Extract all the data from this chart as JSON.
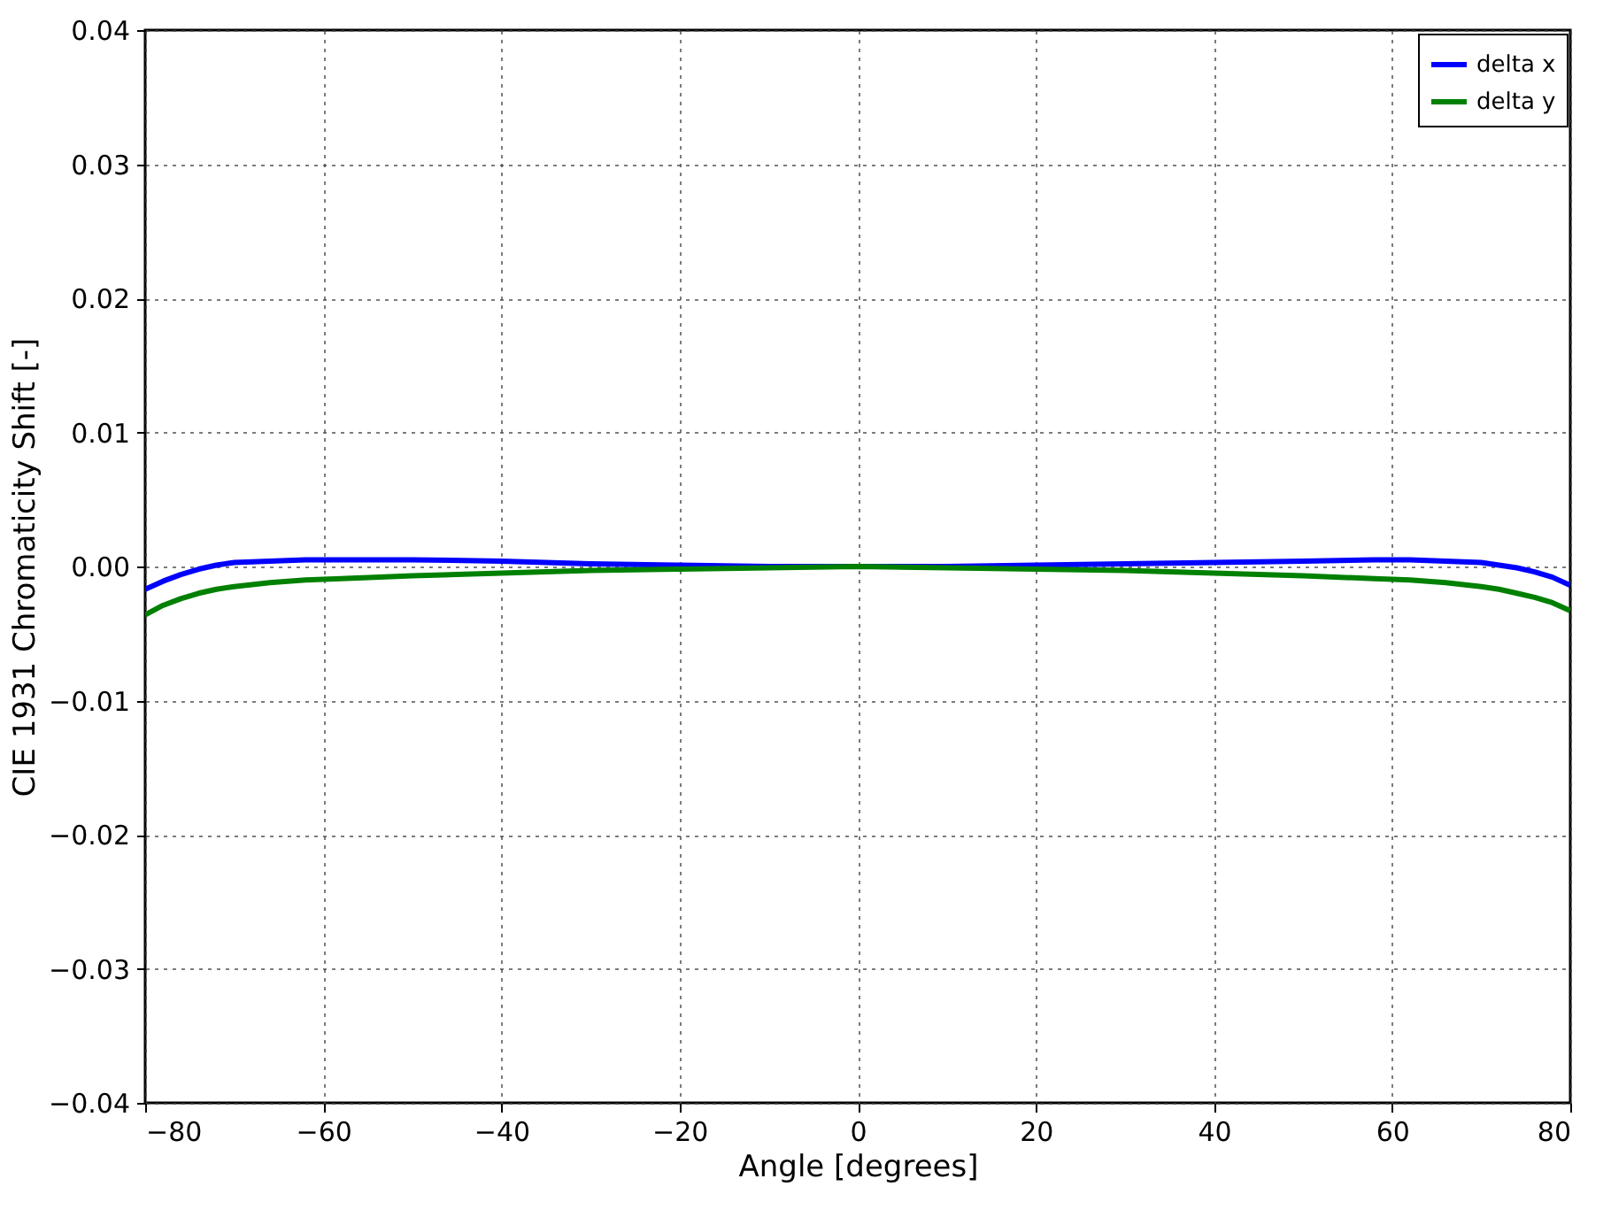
{
  "chart_data": {
    "type": "line",
    "xlabel": "Angle [degrees]",
    "ylabel": "CIE 1931 Chromaticity Shift  [-]",
    "xlim": [
      -80,
      80
    ],
    "ylim": [
      -0.04,
      0.04
    ],
    "xticks": [
      {
        "value": -80,
        "label": "−80"
      },
      {
        "value": -60,
        "label": "−60"
      },
      {
        "value": -40,
        "label": "−40"
      },
      {
        "value": -20,
        "label": "−20"
      },
      0,
      20,
      40,
      60,
      80
    ],
    "yticks": [
      {
        "value": -0.04,
        "label": "−0.04"
      },
      {
        "value": -0.03,
        "label": "−0.03"
      },
      {
        "value": -0.02,
        "label": "−0.02"
      },
      {
        "value": -0.01,
        "label": "−0.01"
      },
      {
        "value": 0,
        "label": "0.00"
      },
      {
        "value": 0.01,
        "label": "0.01"
      },
      {
        "value": 0.02,
        "label": "0.02"
      },
      {
        "value": 0.03,
        "label": "0.03"
      },
      {
        "value": 0.04,
        "label": "0.04"
      }
    ],
    "x": [
      -80,
      -78,
      -76,
      -74,
      -72,
      -70,
      -66,
      -62,
      -58,
      -50,
      -40,
      -30,
      -20,
      -10,
      0,
      10,
      20,
      30,
      40,
      50,
      58,
      62,
      66,
      70,
      72,
      74,
      76,
      78,
      80
    ],
    "series": [
      {
        "name": "delta x",
        "color": "#0000ff",
        "values": [
          -0.0017,
          -0.0011,
          -0.0006,
          -0.0002,
          0.0001,
          0.0003,
          0.0004,
          0.0005,
          0.0005,
          0.0005,
          0.0004,
          0.0002,
          0.0001,
          0.0,
          0.0,
          0.0,
          0.0001,
          0.0002,
          0.0003,
          0.0004,
          0.0005,
          0.0005,
          0.0004,
          0.0003,
          0.0001,
          -0.0001,
          -0.0004,
          -0.0008,
          -0.0014
        ]
      },
      {
        "name": "delta y",
        "color": "#008000",
        "values": [
          -0.0036,
          -0.0029,
          -0.0024,
          -0.002,
          -0.0017,
          -0.0015,
          -0.0012,
          -0.001,
          -0.0009,
          -0.0007,
          -0.0005,
          -0.0003,
          -0.0002,
          -0.0001,
          0.0,
          -0.0001,
          -0.0002,
          -0.0003,
          -0.0005,
          -0.0007,
          -0.0009,
          -0.001,
          -0.0012,
          -0.0015,
          -0.0017,
          -0.002,
          -0.0023,
          -0.0027,
          -0.0033
        ]
      }
    ],
    "grid": true,
    "legend": "top right",
    "line_style": "solid",
    "marker": "none"
  }
}
